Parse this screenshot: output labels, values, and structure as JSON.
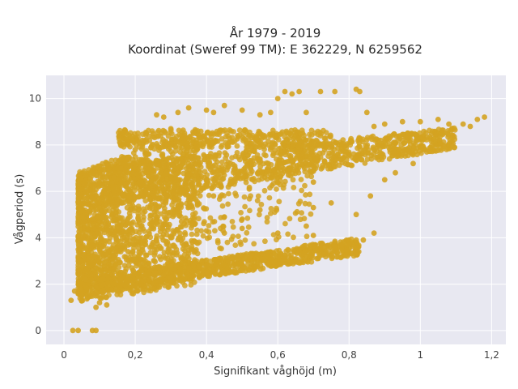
{
  "chart_data": {
    "type": "scatter",
    "title_line1": "År 1979 - 2019",
    "title_line2": "Koordinat (Sweref 99 TM): E 362229, N 6259562",
    "xlabel": "Signifikant våghöjd (m)",
    "ylabel": "Vågperiod (s)",
    "xlim": [
      -0.05,
      1.24
    ],
    "ylim": [
      -0.6,
      11
    ],
    "x_ticks": [
      0,
      0.2,
      0.4,
      0.6,
      0.8,
      1.0,
      1.2
    ],
    "x_tick_labels": [
      "0",
      "0,2",
      "0,4",
      "0,6",
      "0,8",
      "1",
      "1,2"
    ],
    "y_ticks": [
      0,
      2,
      4,
      6,
      8,
      10
    ],
    "y_tick_labels": [
      "0",
      "2",
      "4",
      "6",
      "8",
      "10"
    ],
    "grid": true,
    "legend": "none",
    "colors": {
      "marker": "#D4A321",
      "plot_bg": "#E8E8F1",
      "grid": "#FFFFFF"
    },
    "series": [
      {
        "points": [
          [
            0.025,
            0.0
          ],
          [
            0.04,
            0.0
          ],
          [
            0.08,
            0.0
          ],
          [
            0.09,
            0.0
          ],
          [
            0.02,
            1.3
          ],
          [
            0.03,
            1.7
          ],
          [
            0.05,
            1.5
          ],
          [
            0.06,
            2.2
          ],
          [
            0.04,
            2.6
          ],
          [
            0.07,
            3.1
          ],
          [
            0.05,
            3.6
          ],
          [
            0.06,
            4.1
          ],
          [
            0.08,
            4.8
          ],
          [
            0.1,
            5.5
          ],
          [
            0.12,
            6.1
          ],
          [
            0.14,
            6.6
          ],
          [
            0.16,
            7.0
          ],
          [
            0.18,
            7.4
          ],
          [
            0.2,
            7.8
          ],
          [
            0.22,
            8.2
          ],
          [
            0.25,
            8.5
          ],
          [
            0.3,
            8.7
          ],
          [
            0.26,
            9.3
          ],
          [
            0.28,
            9.2
          ],
          [
            0.32,
            9.4
          ],
          [
            0.35,
            9.6
          ],
          [
            0.4,
            9.5
          ],
          [
            0.42,
            9.4
          ],
          [
            0.45,
            9.7
          ],
          [
            0.5,
            9.5
          ],
          [
            0.55,
            9.3
          ],
          [
            0.58,
            9.4
          ],
          [
            0.6,
            10.0
          ],
          [
            0.62,
            10.3
          ],
          [
            0.64,
            10.2
          ],
          [
            0.66,
            10.3
          ],
          [
            0.68,
            9.4
          ],
          [
            0.72,
            10.3
          ],
          [
            0.76,
            10.3
          ],
          [
            0.82,
            10.4
          ],
          [
            0.83,
            10.3
          ],
          [
            0.85,
            9.4
          ],
          [
            0.87,
            8.8
          ],
          [
            0.9,
            8.9
          ],
          [
            0.95,
            9.0
          ],
          [
            1.0,
            9.0
          ],
          [
            1.05,
            9.1
          ],
          [
            1.08,
            8.9
          ],
          [
            1.12,
            8.9
          ],
          [
            1.14,
            8.8
          ],
          [
            1.16,
            9.1
          ],
          [
            1.18,
            9.2
          ],
          [
            0.12,
            3.3
          ],
          [
            0.14,
            3.2
          ],
          [
            0.18,
            3.4
          ],
          [
            0.22,
            3.6
          ],
          [
            0.25,
            3.8
          ],
          [
            0.3,
            4.0
          ],
          [
            0.36,
            3.8
          ],
          [
            0.4,
            4.3
          ],
          [
            0.45,
            4.2
          ],
          [
            0.5,
            4.4
          ],
          [
            0.6,
            4.2
          ],
          [
            0.62,
            3.1
          ],
          [
            0.68,
            4.5
          ],
          [
            0.7,
            4.1
          ],
          [
            0.8,
            3.9
          ],
          [
            0.82,
            3.9
          ],
          [
            0.87,
            4.2
          ],
          [
            0.78,
            3.7
          ],
          [
            0.82,
            5.0
          ],
          [
            0.86,
            5.8
          ],
          [
            0.9,
            6.5
          ],
          [
            0.93,
            6.8
          ],
          [
            0.98,
            7.2
          ],
          [
            0.55,
            5.2
          ],
          [
            0.5,
            4.8
          ],
          [
            0.45,
            4.9
          ],
          [
            0.7,
            5.3
          ],
          [
            0.75,
            5.5
          ],
          [
            0.3,
            5.1
          ],
          [
            0.33,
            4.7
          ],
          [
            0.38,
            6.3
          ],
          [
            0.42,
            5.8
          ],
          [
            0.52,
            6.1
          ],
          [
            0.48,
            7.0
          ],
          [
            0.63,
            6.7
          ],
          [
            0.7,
            6.4
          ],
          [
            0.15,
            1.7
          ],
          [
            0.2,
            1.9
          ],
          [
            0.28,
            2.4
          ],
          [
            0.3,
            2.3
          ],
          [
            0.35,
            2.7
          ],
          [
            0.4,
            2.8
          ],
          [
            0.46,
            3.0
          ],
          [
            0.52,
            3.1
          ],
          [
            0.56,
            3.3
          ],
          [
            0.6,
            3.2
          ],
          [
            0.66,
            3.5
          ],
          [
            0.72,
            3.6
          ],
          [
            0.76,
            3.6
          ],
          [
            0.8,
            3.7
          ],
          [
            0.84,
            3.9
          ],
          [
            0.1,
            1.2
          ],
          [
            0.12,
            1.1
          ],
          [
            0.09,
            1.0
          ]
        ]
      }
    ]
  }
}
